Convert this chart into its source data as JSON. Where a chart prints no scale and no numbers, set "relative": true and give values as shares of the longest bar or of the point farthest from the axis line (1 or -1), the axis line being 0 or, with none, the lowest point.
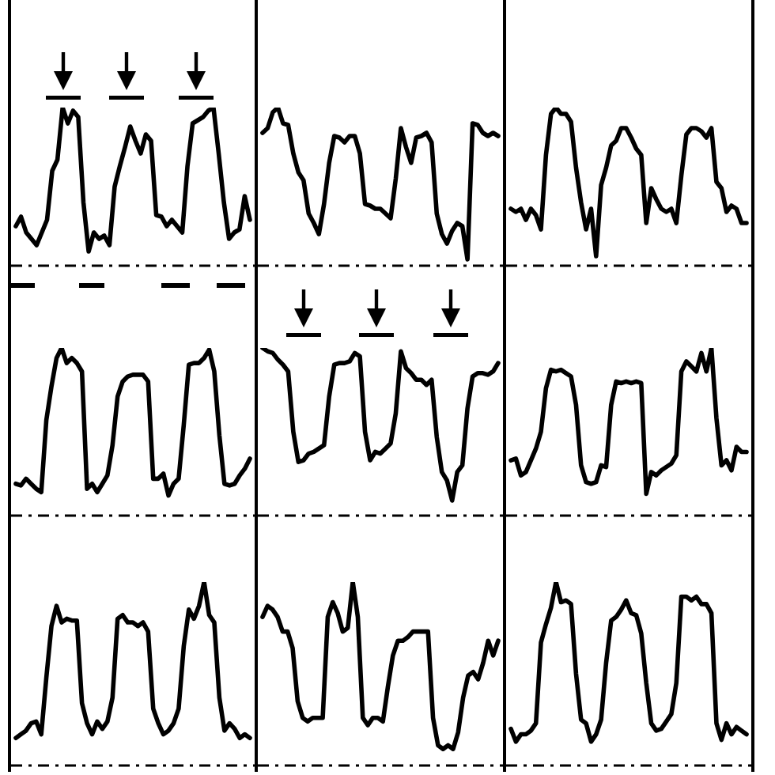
{
  "chart_data": [
    {
      "type": "line",
      "relative": true,
      "color": "#000000",
      "categories": [
        null,
        null,
        null,
        null,
        null,
        null,
        null,
        null,
        null,
        null,
        null,
        null,
        null,
        null,
        null,
        null,
        null,
        null,
        null,
        null,
        null,
        null,
        null,
        null,
        null,
        null,
        null,
        null,
        null,
        null,
        null,
        null,
        null,
        null,
        null,
        null,
        null,
        null,
        null,
        null,
        null,
        null,
        null,
        null,
        null,
        null
      ],
      "values": [
        0.25,
        0.31,
        0.21,
        0.17,
        0.13,
        0.21,
        0.29,
        0.6,
        0.67,
        1.0,
        0.9,
        0.98,
        0.94,
        0.4,
        0.09,
        0.21,
        0.17,
        0.19,
        0.13,
        0.5,
        0.63,
        0.75,
        0.88,
        0.79,
        0.71,
        0.83,
        0.79,
        0.32,
        0.31,
        0.25,
        0.29,
        0.25,
        0.21,
        0.63,
        0.9,
        0.92,
        0.94,
        0.98,
        1.0,
        0.71,
        0.4,
        0.17,
        0.21,
        0.23,
        0.44,
        0.29
      ]
    },
    {
      "type": "line",
      "relative": true,
      "color": "#000000",
      "categories": [
        null,
        null,
        null,
        null,
        null,
        null,
        null,
        null,
        null,
        null,
        null,
        null,
        null,
        null,
        null,
        null,
        null,
        null,
        null,
        null,
        null,
        null,
        null,
        null,
        null,
        null,
        null,
        null,
        null,
        null,
        null,
        null,
        null,
        null,
        null,
        null,
        null,
        null,
        null,
        null,
        null,
        null,
        null,
        null,
        null,
        null,
        null
      ],
      "values": [
        0.84,
        0.87,
        0.97,
        1.0,
        0.9,
        0.89,
        0.71,
        0.59,
        0.54,
        0.33,
        0.27,
        0.2,
        0.39,
        0.65,
        0.82,
        0.81,
        0.78,
        0.82,
        0.82,
        0.71,
        0.39,
        0.38,
        0.36,
        0.36,
        0.33,
        0.3,
        0.55,
        0.87,
        0.75,
        0.65,
        0.81,
        0.82,
        0.84,
        0.78,
        0.33,
        0.2,
        0.14,
        0.22,
        0.27,
        0.25,
        0.04,
        0.9,
        0.89,
        0.84,
        0.82,
        0.84,
        0.82
      ]
    },
    {
      "type": "line",
      "relative": true,
      "color": "#000000",
      "categories": [
        null,
        null,
        null,
        null,
        null,
        null,
        null,
        null,
        null,
        null,
        null,
        null,
        null,
        null,
        null,
        null,
        null,
        null,
        null,
        null,
        null,
        null,
        null,
        null,
        null,
        null,
        null,
        null,
        null,
        null,
        null,
        null,
        null,
        null,
        null,
        null,
        null,
        null,
        null,
        null,
        null,
        null,
        null,
        null,
        null,
        null,
        null,
        null
      ],
      "values": [
        0.36,
        0.34,
        0.36,
        0.29,
        0.36,
        0.32,
        0.23,
        0.7,
        0.96,
        1.0,
        0.96,
        0.96,
        0.91,
        0.62,
        0.4,
        0.23,
        0.36,
        0.06,
        0.51,
        0.62,
        0.76,
        0.79,
        0.87,
        0.87,
        0.81,
        0.74,
        0.7,
        0.27,
        0.49,
        0.42,
        0.36,
        0.34,
        0.36,
        0.27,
        0.57,
        0.83,
        0.87,
        0.87,
        0.85,
        0.81,
        0.87,
        0.53,
        0.49,
        0.34,
        0.38,
        0.36,
        0.27,
        0.27
      ]
    },
    {
      "type": "line",
      "relative": true,
      "color": "#000000",
      "categories": [
        null,
        null,
        null,
        null,
        null,
        null,
        null,
        null,
        null,
        null,
        null,
        null,
        null,
        null,
        null,
        null,
        null,
        null,
        null,
        null,
        null,
        null,
        null,
        null,
        null,
        null,
        null,
        null,
        null,
        null,
        null,
        null,
        null,
        null,
        null,
        null,
        null,
        null,
        null,
        null,
        null,
        null,
        null,
        null,
        null,
        null,
        null
      ],
      "values": [
        0.19,
        0.18,
        0.22,
        0.19,
        0.16,
        0.14,
        0.57,
        0.77,
        0.94,
        1.0,
        0.91,
        0.94,
        0.91,
        0.86,
        0.16,
        0.19,
        0.14,
        0.19,
        0.24,
        0.42,
        0.71,
        0.8,
        0.83,
        0.84,
        0.84,
        0.84,
        0.8,
        0.22,
        0.22,
        0.25,
        0.12,
        0.19,
        0.22,
        0.54,
        0.9,
        0.91,
        0.91,
        0.94,
        0.99,
        0.86,
        0.48,
        0.19,
        0.18,
        0.19,
        0.24,
        0.28,
        0.34
      ]
    },
    {
      "type": "line",
      "relative": true,
      "color": "#000000",
      "categories": [
        null,
        null,
        null,
        null,
        null,
        null,
        null,
        null,
        null,
        null,
        null,
        null,
        null,
        null,
        null,
        null,
        null,
        null,
        null,
        null,
        null,
        null,
        null,
        null,
        null,
        null,
        null,
        null,
        null,
        null,
        null,
        null,
        null,
        null,
        null,
        null,
        null,
        null,
        null,
        null,
        null,
        null,
        null,
        null,
        null,
        null,
        null
      ],
      "values": [
        1.0,
        0.98,
        0.97,
        0.93,
        0.9,
        0.86,
        0.5,
        0.32,
        0.33,
        0.37,
        0.38,
        0.4,
        0.42,
        0.71,
        0.9,
        0.91,
        0.91,
        0.92,
        0.97,
        0.95,
        0.5,
        0.33,
        0.38,
        0.37,
        0.4,
        0.43,
        0.61,
        0.98,
        0.88,
        0.85,
        0.81,
        0.81,
        0.78,
        0.81,
        0.47,
        0.26,
        0.21,
        0.09,
        0.26,
        0.3,
        0.64,
        0.83,
        0.85,
        0.85,
        0.84,
        0.86,
        0.91
      ]
    },
    {
      "type": "line",
      "relative": true,
      "color": "#000000",
      "categories": [
        null,
        null,
        null,
        null,
        null,
        null,
        null,
        null,
        null,
        null,
        null,
        null,
        null,
        null,
        null,
        null,
        null,
        null,
        null,
        null,
        null,
        null,
        null,
        null,
        null,
        null,
        null,
        null,
        null,
        null,
        null,
        null,
        null,
        null,
        null,
        null,
        null,
        null,
        null,
        null,
        null,
        null,
        null,
        null,
        null,
        null,
        null,
        null
      ],
      "values": [
        0.33,
        0.34,
        0.24,
        0.26,
        0.33,
        0.4,
        0.5,
        0.76,
        0.87,
        0.86,
        0.87,
        0.85,
        0.83,
        0.66,
        0.3,
        0.2,
        0.19,
        0.2,
        0.3,
        0.29,
        0.66,
        0.8,
        0.79,
        0.8,
        0.79,
        0.8,
        0.79,
        0.13,
        0.26,
        0.24,
        0.27,
        0.29,
        0.31,
        0.36,
        0.86,
        0.92,
        0.89,
        0.86,
        0.97,
        0.86,
        1.0,
        0.58,
        0.3,
        0.33,
        0.27,
        0.41,
        0.38,
        0.38
      ]
    },
    {
      "type": "line",
      "relative": true,
      "color": "#000000",
      "categories": [
        null,
        null,
        null,
        null,
        null,
        null,
        null,
        null,
        null,
        null,
        null,
        null,
        null,
        null,
        null,
        null,
        null,
        null,
        null,
        null,
        null,
        null,
        null,
        null,
        null,
        null,
        null,
        null,
        null,
        null,
        null,
        null,
        null,
        null,
        null,
        null,
        null,
        null,
        null,
        null,
        null,
        null,
        null,
        null,
        null,
        null,
        null
      ],
      "values": [
        0.15,
        0.17,
        0.19,
        0.23,
        0.24,
        0.17,
        0.48,
        0.76,
        0.87,
        0.78,
        0.8,
        0.79,
        0.79,
        0.34,
        0.23,
        0.17,
        0.24,
        0.2,
        0.24,
        0.37,
        0.8,
        0.82,
        0.78,
        0.78,
        0.76,
        0.78,
        0.73,
        0.31,
        0.23,
        0.17,
        0.19,
        0.23,
        0.31,
        0.65,
        0.85,
        0.8,
        0.87,
        1.0,
        0.82,
        0.78,
        0.37,
        0.19,
        0.23,
        0.2,
        0.15,
        0.17,
        0.15
      ]
    },
    {
      "type": "line",
      "relative": true,
      "color": "#000000",
      "categories": [
        null,
        null,
        null,
        null,
        null,
        null,
        null,
        null,
        null,
        null,
        null,
        null,
        null,
        null,
        null,
        null,
        null,
        null,
        null,
        null,
        null,
        null,
        null,
        null,
        null,
        null,
        null,
        null,
        null,
        null,
        null,
        null,
        null,
        null,
        null,
        null,
        null,
        null,
        null,
        null,
        null,
        null,
        null,
        null,
        null,
        null,
        null,
        null
      ],
      "values": [
        0.81,
        0.87,
        0.85,
        0.81,
        0.73,
        0.73,
        0.64,
        0.35,
        0.26,
        0.24,
        0.26,
        0.26,
        0.26,
        0.81,
        0.89,
        0.83,
        0.73,
        0.75,
        1.0,
        0.81,
        0.26,
        0.22,
        0.26,
        0.26,
        0.24,
        0.43,
        0.6,
        0.68,
        0.68,
        0.7,
        0.73,
        0.73,
        0.73,
        0.73,
        0.26,
        0.11,
        0.09,
        0.11,
        0.09,
        0.18,
        0.37,
        0.49,
        0.51,
        0.47,
        0.56,
        0.68,
        0.6,
        0.68
      ]
    },
    {
      "type": "line",
      "relative": true,
      "color": "#000000",
      "categories": [
        null,
        null,
        null,
        null,
        null,
        null,
        null,
        null,
        null,
        null,
        null,
        null,
        null,
        null,
        null,
        null,
        null,
        null,
        null,
        null,
        null,
        null,
        null,
        null,
        null,
        null,
        null,
        null,
        null,
        null,
        null,
        null,
        null,
        null,
        null,
        null,
        null,
        null,
        null,
        null,
        null,
        null,
        null,
        null,
        null,
        null,
        null,
        null
      ],
      "values": [
        0.2,
        0.13,
        0.17,
        0.17,
        0.19,
        0.23,
        0.67,
        0.77,
        0.86,
        1.0,
        0.89,
        0.9,
        0.88,
        0.5,
        0.25,
        0.23,
        0.13,
        0.17,
        0.25,
        0.56,
        0.79,
        0.81,
        0.85,
        0.9,
        0.83,
        0.82,
        0.72,
        0.45,
        0.23,
        0.19,
        0.2,
        0.24,
        0.28,
        0.45,
        0.92,
        0.92,
        0.9,
        0.92,
        0.88,
        0.88,
        0.83,
        0.23,
        0.14,
        0.23,
        0.17,
        0.21,
        0.19,
        0.17
      ]
    }
  ]
}
